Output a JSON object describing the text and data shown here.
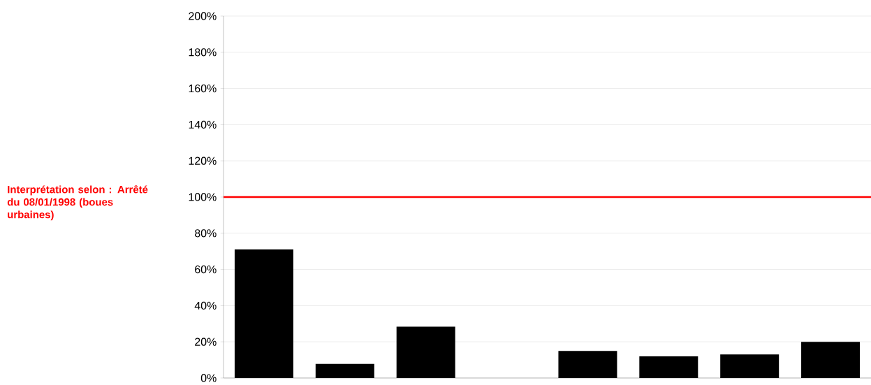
{
  "chart_data": {
    "type": "bar",
    "categories": [
      null,
      null,
      null,
      null,
      null,
      null,
      null,
      null
    ],
    "values": [
      71,
      7.8,
      28.4,
      null,
      15,
      12,
      13,
      20
    ],
    "color": "#000000",
    "ylim": [
      0,
      200
    ],
    "yticks": [
      {
        "value": 0,
        "label": "0%"
      },
      {
        "value": 20,
        "label": "20%"
      },
      {
        "value": 40,
        "label": "40%"
      },
      {
        "value": 60,
        "label": "60%"
      },
      {
        "value": 80,
        "label": "80%"
      },
      {
        "value": 100,
        "label": "100%"
      },
      {
        "value": 120,
        "label": "120%"
      },
      {
        "value": 140,
        "label": "140%"
      },
      {
        "value": 160,
        "label": "160%"
      },
      {
        "value": 180,
        "label": "180%"
      },
      {
        "value": 200,
        "label": "200%"
      }
    ],
    "grid": "y",
    "ref_lines": [
      {
        "axis": "y",
        "value": 100,
        "label": "Interprétation selon : Arrêté du 08/01/1998 (boues urbaines)",
        "color": "#ff0000"
      }
    ]
  }
}
